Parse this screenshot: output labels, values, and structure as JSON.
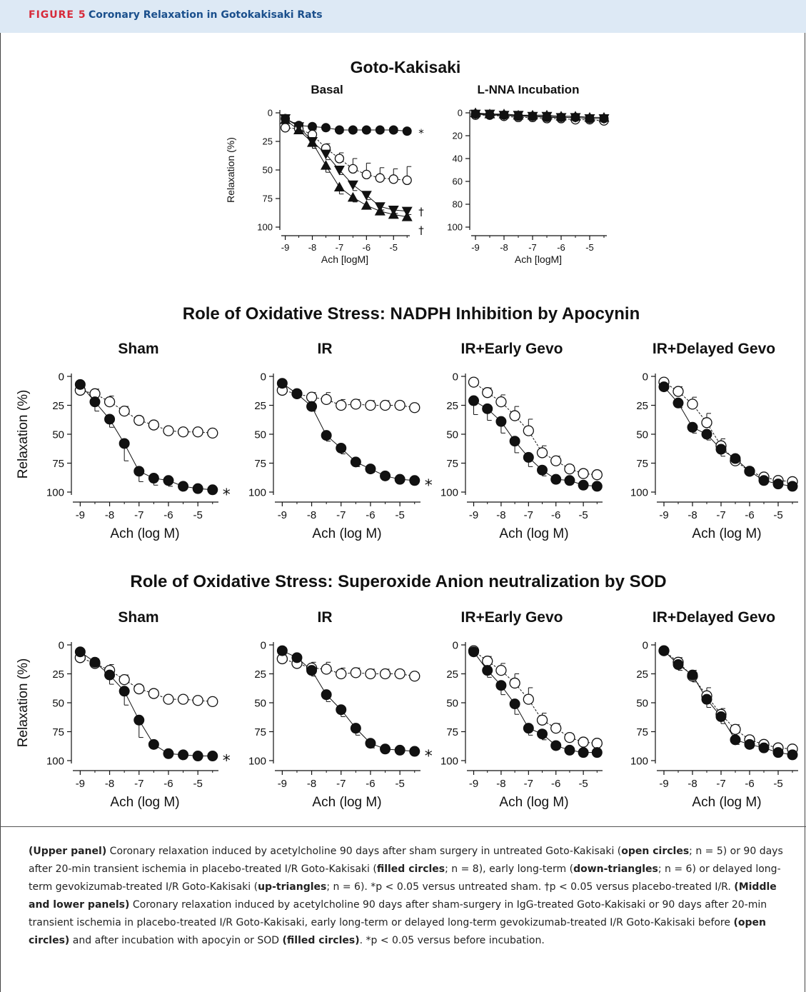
{
  "header": {
    "label": "FIGURE 5",
    "title": "Coronary Relaxation in Gotokakisaki Rats"
  },
  "sections": [
    {
      "title": "Goto-Kakisaki"
    },
    {
      "title": "Role of Oxidative Stress: NADPH Inhibition by Apocynin"
    },
    {
      "title": "Role of Oxidative Stress: Superoxide Anion neutralization by SOD"
    }
  ],
  "colors": {
    "header_bg": "#dde9f5",
    "label": "#d72a3a",
    "title": "#1a4f8c",
    "ink": "#111111"
  },
  "chart_data": [
    {
      "type": "line",
      "id": "top-basal",
      "title": "Basal",
      "xlabel": "Ach [logM]",
      "ylabel": "Relaxation (%)",
      "xlim": [
        -9.2,
        -4.4
      ],
      "ylim": [
        0,
        100
      ],
      "y_inverted": true,
      "xticks": [
        -9,
        -8,
        -7,
        -6,
        -5
      ],
      "yticks": [
        0,
        25,
        50,
        75,
        100
      ],
      "x": [
        -9,
        -8.5,
        -8,
        -7.5,
        -7,
        -6.5,
        -6,
        -5.5,
        -5,
        -4.5
      ],
      "series": [
        {
          "marker": "circle-filled",
          "values": [
            5,
            11,
            12,
            13,
            15,
            15,
            15,
            15,
            15,
            16
          ],
          "err": [
            1,
            2,
            2,
            2,
            2,
            2,
            2,
            2,
            2,
            2
          ]
        },
        {
          "marker": "circle-open",
          "values": [
            13,
            14,
            19,
            31,
            40,
            49,
            54,
            57,
            58,
            59
          ],
          "err": [
            2,
            3,
            4,
            4,
            5,
            9,
            10,
            9,
            9,
            12
          ]
        },
        {
          "marker": "triangle-down",
          "values": [
            5,
            12,
            25,
            36,
            50,
            63,
            72,
            82,
            85,
            86
          ],
          "err": [
            2,
            3,
            6,
            5,
            4,
            5,
            4,
            3,
            3,
            3
          ]
        },
        {
          "marker": "triangle-up",
          "values": [
            6,
            15,
            26,
            46,
            65,
            74,
            81,
            86,
            89,
            91
          ],
          "err": [
            2,
            3,
            5,
            6,
            6,
            4,
            3,
            2,
            2,
            2
          ]
        }
      ],
      "annotations": [
        {
          "text": "*",
          "series": 0
        },
        {
          "text": "†",
          "series": 2
        },
        {
          "text": "†",
          "series": 3
        }
      ]
    },
    {
      "type": "line",
      "id": "top-lnna",
      "title": "L-NNA Incubation",
      "xlabel": "Ach [logM]",
      "ylabel": "",
      "xlim": [
        -9.2,
        -4.4
      ],
      "ylim": [
        0,
        100
      ],
      "y_inverted": true,
      "xticks": [
        -9,
        -8,
        -7,
        -6,
        -5
      ],
      "yticks": [
        0,
        20,
        40,
        60,
        80,
        100
      ],
      "x": [
        -9,
        -8.5,
        -8,
        -7.5,
        -7,
        -6.5,
        -6,
        -5.5,
        -5,
        -4.5
      ],
      "series": [
        {
          "marker": "circle-open",
          "values": [
            2,
            2,
            3,
            4,
            4,
            5,
            5,
            6,
            6,
            7
          ],
          "err": [
            1,
            1,
            1,
            1,
            1,
            1,
            1,
            1,
            1,
            1
          ]
        },
        {
          "marker": "triangle-down",
          "values": [
            1,
            1,
            2,
            2,
            3,
            3,
            4,
            4,
            5,
            5
          ],
          "err": [
            1,
            1,
            1,
            1,
            1,
            1,
            1,
            1,
            1,
            1
          ]
        },
        {
          "marker": "circle-filled",
          "values": [
            1,
            2,
            2,
            3,
            3,
            4,
            4,
            4,
            5,
            5
          ],
          "err": [
            1,
            1,
            1,
            1,
            1,
            1,
            1,
            1,
            1,
            1
          ]
        },
        {
          "marker": "triangle-up",
          "values": [
            0,
            1,
            1,
            2,
            2,
            2,
            3,
            3,
            4,
            4
          ],
          "err": [
            1,
            1,
            1,
            1,
            1,
            1,
            1,
            1,
            1,
            1
          ]
        }
      ],
      "annotations": []
    },
    {
      "type": "line",
      "id": "apo-sham",
      "title": "Sham",
      "xlabel": "Ach (log M)",
      "ylabel": "Relaxation (%)",
      "xlim": [
        -9.3,
        -4.3
      ],
      "ylim": [
        0,
        100
      ],
      "y_inverted": true,
      "xticks": [
        -9,
        -8,
        -7,
        -6,
        -5
      ],
      "yticks": [
        0,
        25,
        50,
        75,
        100
      ],
      "x": [
        -9,
        -8.5,
        -8,
        -7.5,
        -7,
        -6.5,
        -6,
        -5.5,
        -5,
        -4.5
      ],
      "series": [
        {
          "marker": "circle-open",
          "values": [
            12,
            15,
            22,
            30,
            38,
            42,
            47,
            48,
            48,
            49
          ],
          "err": [
            3,
            4,
            5,
            4,
            3,
            3,
            2,
            2,
            2,
            2
          ]
        },
        {
          "marker": "circle-filled",
          "values": [
            7,
            22,
            37,
            58,
            82,
            88,
            90,
            95,
            97,
            98
          ],
          "err": [
            2,
            8,
            7,
            15,
            9,
            6,
            5,
            2,
            2,
            2
          ]
        }
      ],
      "annotations": [
        {
          "text": "*",
          "series": 1
        }
      ]
    },
    {
      "type": "line",
      "id": "apo-ir",
      "title": "IR",
      "xlabel": "Ach (log M)",
      "ylabel": "",
      "xlim": [
        -9.3,
        -4.3
      ],
      "ylim": [
        0,
        100
      ],
      "y_inverted": true,
      "xticks": [
        -9,
        -8,
        -7,
        -6,
        -5
      ],
      "yticks": [
        0,
        25,
        50,
        75,
        100
      ],
      "x": [
        -9,
        -8.5,
        -8,
        -7.5,
        -7,
        -6.5,
        -6,
        -5.5,
        -5,
        -4.5
      ],
      "series": [
        {
          "marker": "circle-open",
          "values": [
            12,
            15,
            18,
            20,
            25,
            24,
            25,
            25,
            25,
            27
          ],
          "err": [
            3,
            3,
            4,
            6,
            5,
            4,
            4,
            4,
            3,
            3
          ]
        },
        {
          "marker": "circle-filled",
          "values": [
            6,
            15,
            26,
            51,
            62,
            74,
            80,
            86,
            89,
            90
          ],
          "err": [
            2,
            3,
            4,
            5,
            5,
            4,
            3,
            2,
            2,
            2
          ]
        }
      ],
      "annotations": [
        {
          "text": "*",
          "series": 1
        }
      ]
    },
    {
      "type": "line",
      "id": "apo-early",
      "title": "IR+Early Gevo",
      "xlabel": "Ach (log M)",
      "ylabel": "",
      "xlim": [
        -9.3,
        -4.3
      ],
      "ylim": [
        0,
        100
      ],
      "y_inverted": true,
      "xticks": [
        -9,
        -8,
        -7,
        -6,
        -5
      ],
      "yticks": [
        0,
        25,
        50,
        75,
        100
      ],
      "x": [
        -9,
        -8.5,
        -8,
        -7.5,
        -7,
        -6.5,
        -6,
        -5.5,
        -5,
        -4.5
      ],
      "series": [
        {
          "marker": "circle-open",
          "values": [
            5,
            14,
            22,
            34,
            47,
            66,
            73,
            80,
            84,
            85
          ],
          "err": [
            3,
            4,
            6,
            8,
            10,
            6,
            4,
            3,
            3,
            3
          ]
        },
        {
          "marker": "circle-filled",
          "values": [
            21,
            28,
            39,
            56,
            70,
            81,
            89,
            90,
            94,
            95
          ],
          "err": [
            12,
            10,
            10,
            10,
            8,
            5,
            3,
            2,
            2,
            2
          ]
        }
      ],
      "annotations": []
    },
    {
      "type": "line",
      "id": "apo-delayed",
      "title": "IR+Delayed Gevo",
      "xlabel": "Ach (log M)",
      "ylabel": "",
      "xlim": [
        -9.3,
        -4.3
      ],
      "ylim": [
        0,
        100
      ],
      "y_inverted": true,
      "xticks": [
        -9,
        -8,
        -7,
        -6,
        -5
      ],
      "yticks": [
        0,
        25,
        50,
        75,
        100
      ],
      "x": [
        -9,
        -8.5,
        -8,
        -7.5,
        -7,
        -6.5,
        -6,
        -5.5,
        -5,
        -4.5
      ],
      "series": [
        {
          "marker": "circle-open",
          "values": [
            5,
            13,
            24,
            40,
            60,
            73,
            82,
            87,
            90,
            91
          ],
          "err": [
            2,
            4,
            6,
            8,
            6,
            4,
            3,
            2,
            2,
            2
          ]
        },
        {
          "marker": "circle-filled",
          "values": [
            9,
            23,
            44,
            50,
            63,
            71,
            82,
            90,
            93,
            95
          ],
          "err": [
            2,
            4,
            5,
            5,
            6,
            5,
            3,
            2,
            2,
            2
          ]
        }
      ],
      "annotations": []
    },
    {
      "type": "line",
      "id": "sod-sham",
      "title": "Sham",
      "xlabel": "Ach (log M)",
      "ylabel": "Relaxation (%)",
      "xlim": [
        -9.3,
        -4.3
      ],
      "ylim": [
        0,
        100
      ],
      "y_inverted": true,
      "xticks": [
        -9,
        -8,
        -7,
        -6,
        -5
      ],
      "yticks": [
        0,
        25,
        50,
        75,
        100
      ],
      "x": [
        -9,
        -8.5,
        -8,
        -7.5,
        -7,
        -6.5,
        -6,
        -5.5,
        -5,
        -4.5
      ],
      "series": [
        {
          "marker": "circle-open",
          "values": [
            11,
            16,
            22,
            30,
            38,
            42,
            47,
            47,
            48,
            49
          ],
          "err": [
            3,
            4,
            5,
            4,
            3,
            3,
            2,
            2,
            2,
            2
          ]
        },
        {
          "marker": "circle-filled",
          "values": [
            6,
            15,
            26,
            40,
            65,
            86,
            94,
            95,
            96,
            96
          ],
          "err": [
            2,
            4,
            8,
            12,
            15,
            3,
            2,
            2,
            2,
            2
          ]
        }
      ],
      "annotations": [
        {
          "text": "*",
          "series": 1
        }
      ]
    },
    {
      "type": "line",
      "id": "sod-ir",
      "title": "IR",
      "xlabel": "Ach (log M)",
      "ylabel": "",
      "xlim": [
        -9.3,
        -4.3
      ],
      "ylim": [
        0,
        100
      ],
      "y_inverted": true,
      "xticks": [
        -9,
        -8,
        -7,
        -6,
        -5
      ],
      "yticks": [
        0,
        25,
        50,
        75,
        100
      ],
      "x": [
        -9,
        -8.5,
        -8,
        -7.5,
        -7,
        -6.5,
        -6,
        -5.5,
        -5,
        -4.5
      ],
      "series": [
        {
          "marker": "circle-open",
          "values": [
            12,
            16,
            20,
            21,
            25,
            24,
            25,
            25,
            25,
            27
          ],
          "err": [
            4,
            4,
            5,
            6,
            5,
            4,
            4,
            4,
            3,
            3
          ]
        },
        {
          "marker": "circle-filled",
          "values": [
            5,
            11,
            22,
            43,
            56,
            72,
            85,
            90,
            91,
            92
          ],
          "err": [
            2,
            3,
            5,
            6,
            6,
            6,
            4,
            2,
            2,
            2
          ]
        }
      ],
      "annotations": [
        {
          "text": "*",
          "series": 1
        }
      ]
    },
    {
      "type": "line",
      "id": "sod-early",
      "title": "IR+Early Gevo",
      "xlabel": "Ach (log M)",
      "ylabel": "",
      "xlim": [
        -9.3,
        -4.3
      ],
      "ylim": [
        0,
        100
      ],
      "y_inverted": true,
      "xticks": [
        -9,
        -8,
        -7,
        -6,
        -5
      ],
      "yticks": [
        0,
        25,
        50,
        75,
        100
      ],
      "x": [
        -9,
        -8.5,
        -8,
        -7.5,
        -7,
        -6.5,
        -6,
        -5.5,
        -5,
        -4.5
      ],
      "series": [
        {
          "marker": "circle-open",
          "values": [
            5,
            14,
            22,
            33,
            47,
            65,
            72,
            80,
            84,
            85
          ],
          "err": [
            2,
            4,
            6,
            8,
            10,
            6,
            4,
            3,
            3,
            3
          ]
        },
        {
          "marker": "circle-filled",
          "values": [
            6,
            22,
            35,
            51,
            72,
            77,
            87,
            91,
            93,
            93
          ],
          "err": [
            2,
            6,
            8,
            9,
            6,
            5,
            3,
            2,
            2,
            2
          ]
        }
      ],
      "annotations": []
    },
    {
      "type": "line",
      "id": "sod-delayed",
      "title": "IR+Delayed Gevo",
      "xlabel": "Ach (log M)",
      "ylabel": "",
      "xlim": [
        -9.3,
        -4.3
      ],
      "ylim": [
        0,
        100
      ],
      "y_inverted": true,
      "xticks": [
        -9,
        -8,
        -7,
        -6,
        -5
      ],
      "yticks": [
        0,
        25,
        50,
        75,
        100
      ],
      "x": [
        -9,
        -8.5,
        -8,
        -7.5,
        -7,
        -6.5,
        -6,
        -5.5,
        -5,
        -4.5
      ],
      "series": [
        {
          "marker": "circle-open",
          "values": [
            5,
            15,
            27,
            44,
            60,
            73,
            82,
            86,
            89,
            90
          ],
          "err": [
            2,
            4,
            5,
            7,
            5,
            4,
            3,
            2,
            2,
            2
          ]
        },
        {
          "marker": "circle-filled",
          "values": [
            5,
            17,
            26,
            47,
            62,
            82,
            86,
            89,
            93,
            95
          ],
          "err": [
            2,
            5,
            6,
            7,
            6,
            4,
            3,
            2,
            2,
            2
          ]
        }
      ],
      "annotations": []
    }
  ],
  "caption": {
    "upper_label": "(Upper panel)",
    "upper_t1": " Coronary relaxation induced by acetylcholine 90 days after sham surgery in untreated Goto-Kakisaki (",
    "upper_b1": "open circles",
    "upper_t2": "; n = 5) or 90 days after 20-min transient ischemia in placebo-treated I/R Goto-Kakisaki (",
    "upper_b2": "filled circles",
    "upper_t3": "; n = 8), early long-term (",
    "upper_b3": "down-triangles",
    "upper_t4": "; n = 6) or delayed long-term gevokizumab-treated I/R Goto-Kakisaki (",
    "upper_b4": "up-triangles",
    "upper_t5": "; n = 6). *p < 0.05 versus untreated sham. †p < 0.05 versus placebo-treated I/R. ",
    "middle_label": "(Middle and lower panels)",
    "middle_t1": " Coronary relaxation induced by acetylcholine 90 days after sham-surgery in IgG-treated Goto-Kakisaki or 90 days after 20-min transient ischemia in placebo-treated I/R Goto-Kakisaki, early long-term or delayed long-term gevokizumab-treated I/R Goto-Kakisaki before ",
    "middle_b1": "(open circles)",
    "middle_t2": " and after incubation with apocyin or SOD ",
    "middle_b2": "(filled circles)",
    "middle_t3": ". *p < 0.05 versus before incubation."
  }
}
